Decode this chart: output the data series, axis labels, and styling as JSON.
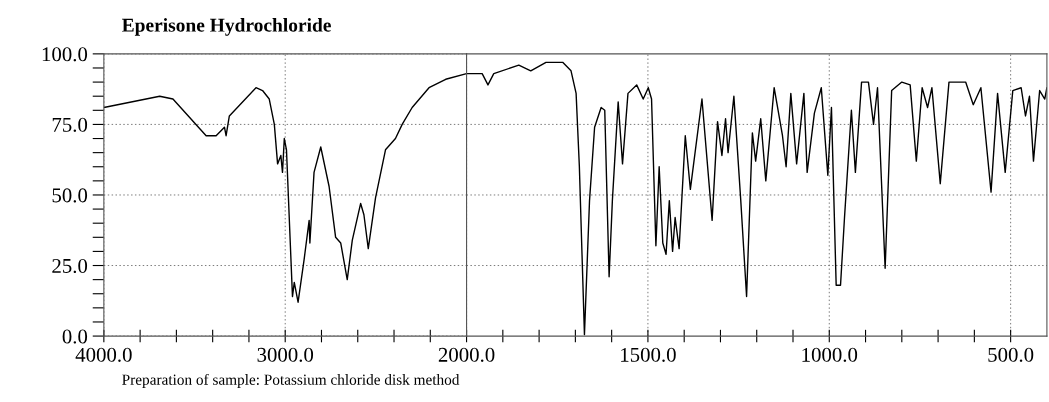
{
  "chart_data": [
    {
      "type": "line",
      "title": "Eperisone Hydrochloride",
      "annotations": [
        "Preparation of sample: Potassium chloride disk method"
      ],
      "x": [
        4000,
        3692,
        3619,
        3436,
        3381,
        3335,
        3326,
        3308,
        3161,
        3125,
        3088,
        3060,
        3042,
        3024,
        3015,
        3005,
        2993,
        2960,
        2950,
        2929,
        2896,
        2868,
        2864,
        2841,
        2804,
        2758,
        2722,
        2694,
        2658,
        2630,
        2584,
        2566,
        2542,
        2502,
        2447,
        2392,
        2355,
        2300,
        2207,
        2115,
        2000
      ],
      "series": [
        {
          "color": "#000000",
          "values": [
            81,
            85,
            84,
            71,
            71,
            74,
            71,
            78,
            88,
            87,
            84,
            75,
            61,
            64,
            58,
            70,
            66,
            14,
            19,
            12,
            27,
            41,
            33,
            58,
            67,
            53,
            35,
            33,
            20,
            34,
            47,
            43,
            31,
            49,
            66,
            70,
            75,
            81,
            88,
            91,
            93
          ]
        }
      ],
      "xlim": [
        4000,
        2000
      ],
      "xticks": [
        {
          "value": 4000,
          "label": "4000.0"
        },
        {
          "value": 3800,
          "label": null
        },
        {
          "value": 3600,
          "label": null
        },
        {
          "value": 3400,
          "label": null
        },
        {
          "value": 3200,
          "label": null
        },
        {
          "value": 3000,
          "label": "3000.0"
        },
        {
          "value": 2800,
          "label": null
        },
        {
          "value": 2600,
          "label": null
        },
        {
          "value": 2400,
          "label": null
        },
        {
          "value": 2200,
          "label": null
        }
      ],
      "ylim": [
        0,
        100
      ],
      "yticks": [
        {
          "value": 0,
          "label": "0.0"
        },
        {
          "value": 5,
          "label": null
        },
        {
          "value": 10,
          "label": null
        },
        {
          "value": 15,
          "label": null
        },
        {
          "value": 20,
          "label": null
        },
        {
          "value": 25,
          "label": "25.0"
        },
        {
          "value": 30,
          "label": null
        },
        {
          "value": 35,
          "label": null
        },
        {
          "value": 40,
          "label": null
        },
        {
          "value": 45,
          "label": null
        },
        {
          "value": 50,
          "label": "50.0"
        },
        {
          "value": 55,
          "label": null
        },
        {
          "value": 60,
          "label": null
        },
        {
          "value": 65,
          "label": null
        },
        {
          "value": 70,
          "label": null
        },
        {
          "value": 75,
          "label": "75.0"
        },
        {
          "value": 80,
          "label": null
        },
        {
          "value": 85,
          "label": null
        },
        {
          "value": 90,
          "label": null
        },
        {
          "value": 95,
          "label": null
        },
        {
          "value": 100,
          "label": "100.0"
        }
      ],
      "grid": true
    },
    {
      "type": "line",
      "x": [
        2000,
        1957,
        1941,
        1925,
        1856,
        1823,
        1781,
        1735,
        1712,
        1698,
        1689,
        1675,
        1661,
        1647,
        1629,
        1619,
        1607,
        1598,
        1582,
        1570,
        1555,
        1531,
        1513,
        1499,
        1490,
        1478,
        1469,
        1459,
        1450,
        1441,
        1432,
        1425,
        1414,
        1397,
        1383,
        1374,
        1351,
        1323,
        1308,
        1296,
        1286,
        1279,
        1263,
        1244,
        1228,
        1212,
        1203,
        1189,
        1175,
        1152,
        1129,
        1119,
        1106,
        1090,
        1070,
        1061,
        1041,
        1022,
        1004,
        994,
        981,
        969,
        958,
        939,
        928,
        911,
        892,
        878,
        867,
        846,
        828,
        800,
        777,
        760,
        744,
        729,
        717,
        694,
        670,
        624,
        603,
        582,
        554,
        536,
        515,
        494,
        471,
        459,
        448,
        437,
        420,
        406,
        400
      ],
      "series": [
        {
          "color": "#000000",
          "values": [
            93,
            93,
            89,
            93,
            96,
            94,
            97,
            97,
            94,
            86,
            60,
            0.5,
            48,
            74,
            81,
            80,
            21,
            48,
            83,
            61,
            86,
            89,
            84,
            88,
            84,
            32,
            60,
            33,
            29,
            48,
            30,
            42,
            31,
            71,
            52,
            61,
            84,
            41,
            76,
            64,
            77,
            65,
            85,
            48,
            14,
            72,
            62,
            77,
            55,
            88,
            71,
            60,
            86,
            61,
            86,
            58,
            79,
            88,
            57,
            81,
            18,
            18,
            42,
            80,
            58,
            90,
            90,
            75,
            88,
            24,
            87,
            90,
            89,
            62,
            88,
            81,
            88,
            54,
            90,
            90,
            82,
            88,
            51,
            86,
            58,
            87,
            88,
            78,
            85,
            62,
            87,
            84,
            88
          ]
        }
      ],
      "xlim": [
        2000,
        400
      ],
      "xticks": [
        {
          "value": 2000,
          "label": "2000.0"
        },
        {
          "value": 1900,
          "label": null
        },
        {
          "value": 1800,
          "label": null
        },
        {
          "value": 1700,
          "label": null
        },
        {
          "value": 1600,
          "label": null
        },
        {
          "value": 1500,
          "label": "1500.0"
        },
        {
          "value": 1400,
          "label": null
        },
        {
          "value": 1300,
          "label": null
        },
        {
          "value": 1200,
          "label": null
        },
        {
          "value": 1100,
          "label": null
        },
        {
          "value": 1000,
          "label": "1000.0"
        },
        {
          "value": 900,
          "label": null
        },
        {
          "value": 800,
          "label": null
        },
        {
          "value": 700,
          "label": null
        },
        {
          "value": 600,
          "label": null
        },
        {
          "value": 500,
          "label": "500.0"
        }
      ],
      "ylim": [
        0,
        100
      ],
      "yticks": [
        25,
        50,
        75
      ],
      "tick_labels": "x",
      "grid": true
    }
  ]
}
